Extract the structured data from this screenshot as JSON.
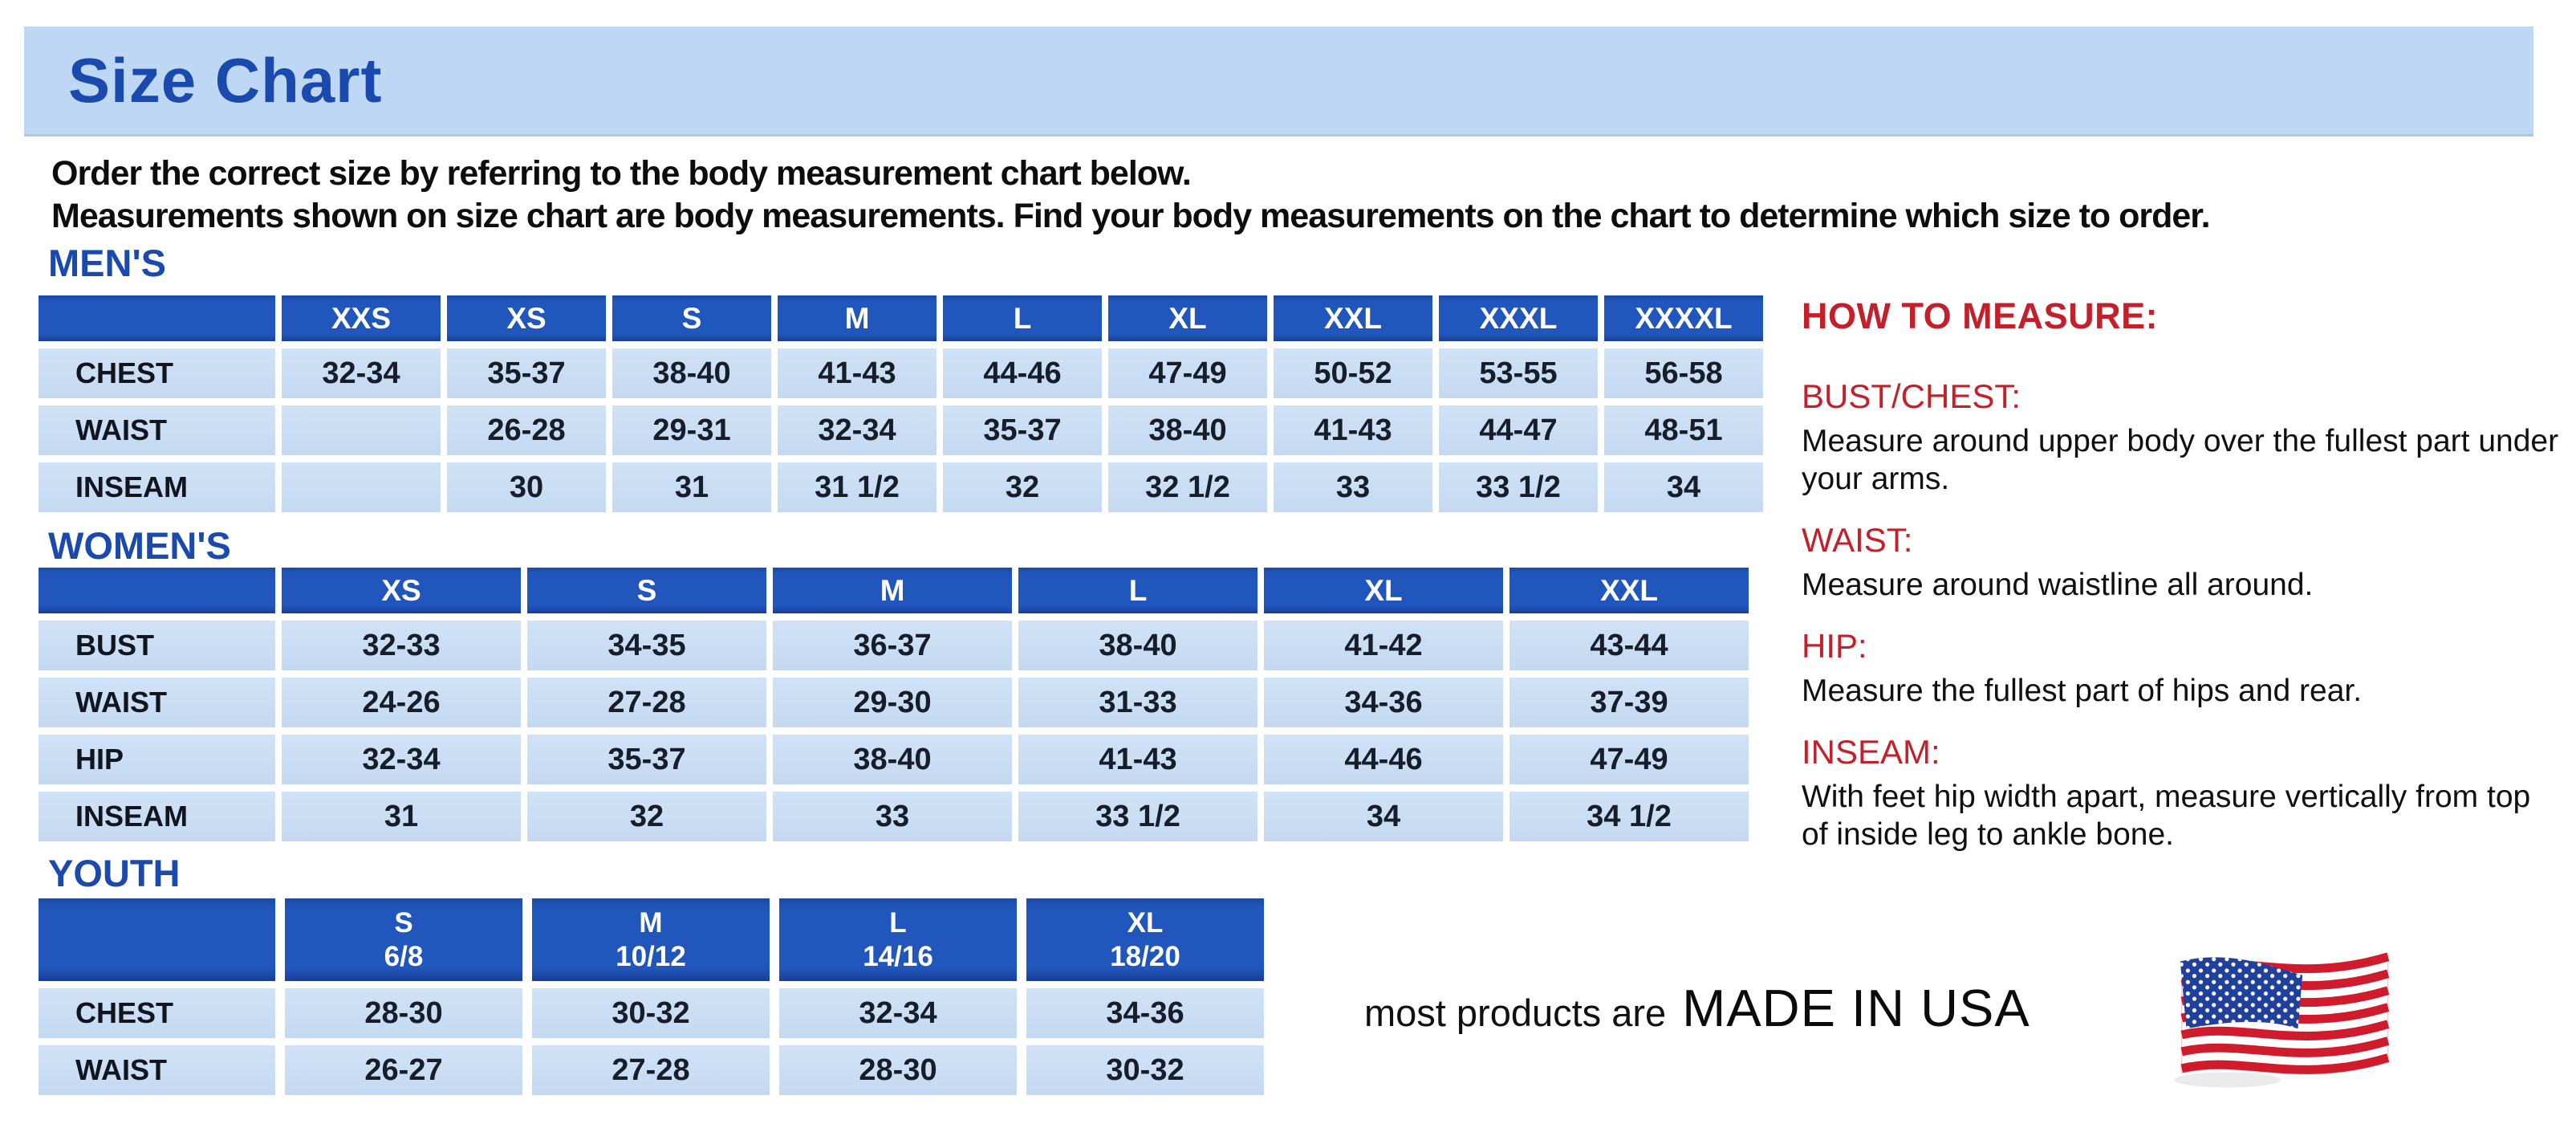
{
  "banner": {
    "title": "Size Chart"
  },
  "intro": {
    "line1": "Order the correct size by referring to the body measurement chart below.",
    "line2": "Measurements shown on size chart are body measurements.  Find your body measurements on the chart to determine which size to order."
  },
  "tables": {
    "men": {
      "heading": "MEN'S",
      "col_headers": [
        "",
        "XXS",
        "XS",
        "S",
        "M",
        "L",
        "XL",
        "XXL",
        "XXXL",
        "XXXXL"
      ],
      "rows": [
        {
          "label": "CHEST",
          "values": [
            "32-34",
            "35-37",
            "38-40",
            "41-43",
            "44-46",
            "47-49",
            "50-52",
            "53-55",
            "56-58"
          ]
        },
        {
          "label": "WAIST",
          "values": [
            "",
            "26-28",
            "29-31",
            "32-34",
            "35-37",
            "38-40",
            "41-43",
            "44-47",
            "48-51"
          ]
        },
        {
          "label": "INSEAM",
          "values": [
            "",
            "30",
            "31",
            "31 1/2",
            "32",
            "32 1/2",
            "33",
            "33 1/2",
            "34"
          ]
        }
      ]
    },
    "women": {
      "heading": "WOMEN'S",
      "col_headers": [
        "",
        "XS",
        "S",
        "M",
        "L",
        "XL",
        "XXL"
      ],
      "rows": [
        {
          "label": "BUST",
          "values": [
            "32-33",
            "34-35",
            "36-37",
            "38-40",
            "41-42",
            "43-44"
          ]
        },
        {
          "label": "WAIST",
          "values": [
            "24-26",
            "27-28",
            "29-30",
            "31-33",
            "34-36",
            "37-39"
          ]
        },
        {
          "label": "HIP",
          "values": [
            "32-34",
            "35-37",
            "38-40",
            "41-43",
            "44-46",
            "47-49"
          ]
        },
        {
          "label": "INSEAM",
          "values": [
            "31",
            "32",
            "33",
            "33 1/2",
            "34",
            "34 1/2"
          ]
        }
      ]
    },
    "youth": {
      "heading": "YOUTH",
      "col_headers": [
        "",
        {
          "size": "S",
          "range": "6/8"
        },
        {
          "size": "M",
          "range": "10/12"
        },
        {
          "size": "L",
          "range": "14/16"
        },
        {
          "size": "XL",
          "range": "18/20"
        }
      ],
      "rows": [
        {
          "label": "CHEST",
          "values": [
            "28-30",
            "30-32",
            "32-34",
            "34-36"
          ]
        },
        {
          "label": "WAIST",
          "values": [
            "26-27",
            "27-28",
            "28-30",
            "30-32"
          ]
        }
      ]
    }
  },
  "how_to_measure": {
    "heading": "HOW TO MEASURE:",
    "items": [
      {
        "label": "BUST/CHEST:",
        "text": "Measure around upper body over the fullest part under your arms."
      },
      {
        "label": "WAIST:",
        "text": "Measure around waistline all around."
      },
      {
        "label": "HIP:",
        "text": "Measure the fullest part of hips and rear."
      },
      {
        "label": "INSEAM:",
        "text": "With feet hip width apart, measure vertically from top of inside leg to ankle bone."
      }
    ]
  },
  "footer": {
    "made_in_prefix": "most products are",
    "made_in": "MADE IN USA",
    "flag_icon": "usa-flag"
  },
  "colors": {
    "banner_bg": "#bdd7f5",
    "heading_blue": "#1b4aae",
    "table_header_blue": "#2157bc",
    "table_cell_blue": "#c7dcf3",
    "accent_red": "#c2202a",
    "flag_red": "#cf1b2b",
    "flag_blue": "#20409b"
  }
}
